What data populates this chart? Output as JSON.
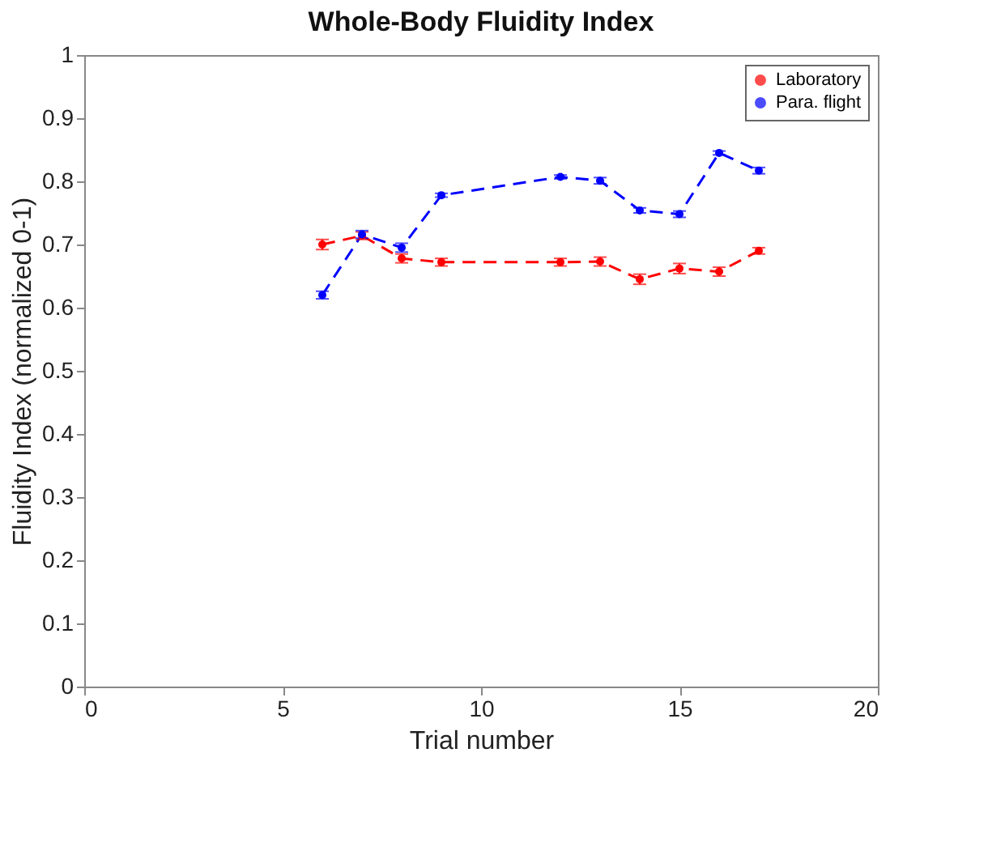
{
  "chart_data": {
    "type": "line",
    "title": "Whole-Body Fluidity Index",
    "xlabel": "Trial number",
    "ylabel": "Fluidity Index (normalized 0-1)",
    "x": [
      6,
      7,
      8,
      9,
      12,
      13,
      14,
      15,
      16,
      17
    ],
    "series": [
      {
        "name": "Laboratory",
        "color": "#ff0000",
        "values": [
          0.7,
          0.714,
          0.678,
          0.672,
          0.672,
          0.673,
          0.645,
          0.662,
          0.657,
          0.69
        ],
        "errors": [
          0.008,
          0.006,
          0.007,
          0.006,
          0.006,
          0.007,
          0.008,
          0.008,
          0.007,
          0.005
        ]
      },
      {
        "name": "Para. flight",
        "color": "#0000ff",
        "values": [
          0.62,
          0.716,
          0.695,
          0.778,
          0.807,
          0.801,
          0.754,
          0.748,
          0.845,
          0.817
        ],
        "errors": [
          0.006,
          0.006,
          0.007,
          0.003,
          0.003,
          0.005,
          0.004,
          0.005,
          0.003,
          0.005
        ]
      }
    ],
    "xlim": [
      0,
      20
    ],
    "xticks": [
      0,
      5,
      10,
      15,
      20
    ],
    "ylim": [
      0,
      1
    ],
    "yticks": [
      0,
      0.1,
      0.2,
      0.3,
      0.4,
      0.5,
      0.6,
      0.7,
      0.8,
      0.9,
      1
    ],
    "grid": false,
    "legend": "top right",
    "marker": "circle",
    "line_style": "dashed"
  }
}
